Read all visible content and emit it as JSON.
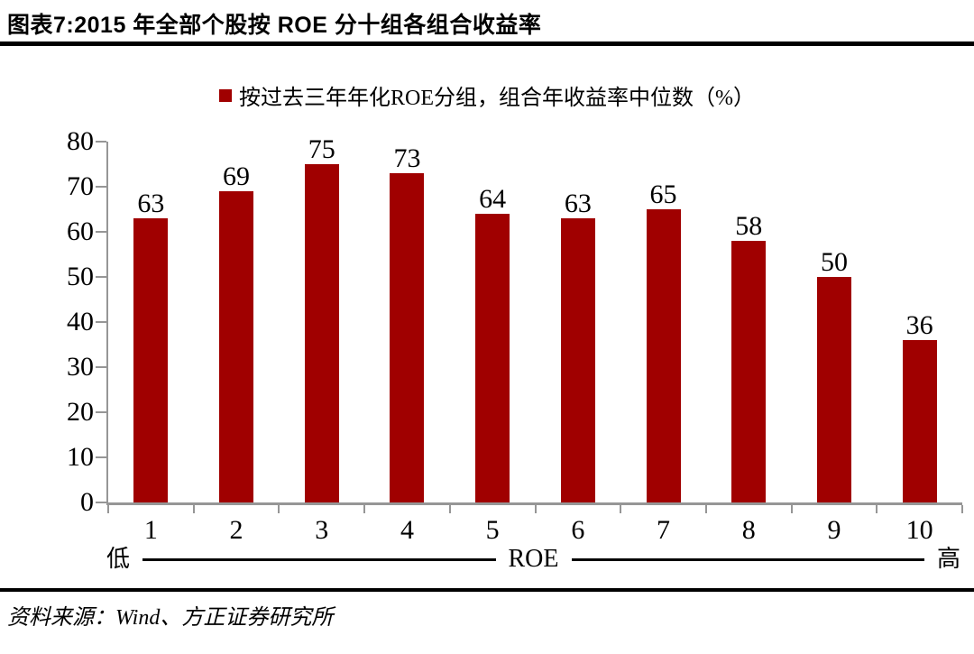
{
  "header": {
    "title": "图表7:2015 年全部个股按 ROE 分十组各组合收益率"
  },
  "legend": {
    "label": "按过去三年年化ROE分组，组合年收益率中位数（%）",
    "marker_color": "#A00000"
  },
  "axis_annotation": {
    "low": "低",
    "mid": "ROE",
    "high": "高"
  },
  "footer": {
    "source": "资料来源：Wind、方正证券研究所"
  },
  "chart_data": {
    "type": "bar",
    "title": "按过去三年年化ROE分组，组合年收益率中位数（%）",
    "categories": [
      "1",
      "2",
      "3",
      "4",
      "5",
      "6",
      "7",
      "8",
      "9",
      "10"
    ],
    "values": [
      63,
      69,
      75,
      73,
      64,
      63,
      65,
      58,
      50,
      36
    ],
    "xlabel": "ROE",
    "ylabel": "",
    "ylim": [
      0,
      80
    ],
    "ytick_step": 10,
    "grid": false,
    "legend_position": "top",
    "bar_color": "#A00000",
    "axis_color": "#969696",
    "x_axis_low_label": "低",
    "x_axis_high_label": "高"
  }
}
